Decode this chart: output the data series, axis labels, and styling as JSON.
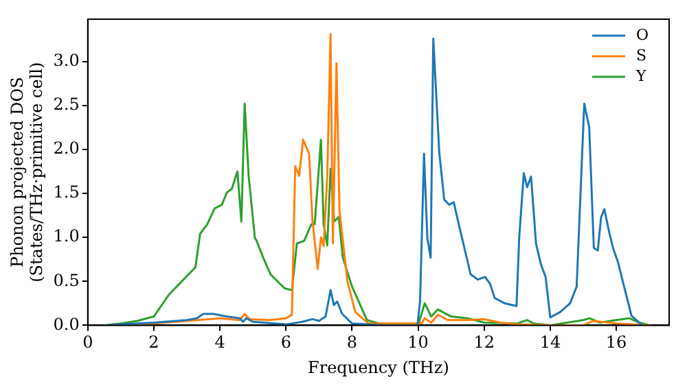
{
  "chart_data": {
    "type": "line",
    "xlabel": "Frequency (THz)",
    "ylabel": "Phonon projected DOS\n(States/THz·primitive cell)",
    "xlim": [
      0,
      17.6
    ],
    "ylim": [
      0,
      3.48
    ],
    "xticks": [
      0,
      2,
      4,
      6,
      8,
      10,
      12,
      14,
      16
    ],
    "yticks": [
      {
        "value": 0,
        "label": "0.0"
      },
      {
        "value": 0.5,
        "label": "0.5"
      },
      {
        "value": 1,
        "label": "1.0"
      },
      {
        "value": 1.5,
        "label": "1.5"
      },
      {
        "value": 2,
        "label": "2.0"
      },
      {
        "value": 2.5,
        "label": "2.5"
      },
      {
        "value": 3,
        "label": "3.0"
      }
    ],
    "grid": false,
    "legend": "top right",
    "marker": "none",
    "line_style": "solid",
    "series": [
      {
        "name": "O",
        "color": "#1f77b4",
        "x": [
          0.5,
          1,
          2,
          3,
          3.3,
          3.5,
          3.8,
          4.2,
          4.6,
          4.7,
          4.8,
          5,
          6,
          6.5,
          6.8,
          7,
          7.2,
          7.35,
          7.45,
          7.55,
          7.7,
          8,
          9,
          9.98,
          10.06,
          10.18,
          10.28,
          10.38,
          10.46,
          10.64,
          10.79,
          10.94,
          11.08,
          11.23,
          11.37,
          11.59,
          11.81,
          12.03,
          12.18,
          12.32,
          12.62,
          12.98,
          13.06,
          13.2,
          13.3,
          13.42,
          13.57,
          13.72,
          13.86,
          14.0,
          14.3,
          14.6,
          14.8,
          15.03,
          15.18,
          15.32,
          15.44,
          15.54,
          15.64,
          15.76,
          15.9,
          16.05,
          16.27,
          16.46,
          16.78
        ],
        "values": [
          0,
          0.01,
          0.03,
          0.06,
          0.08,
          0.13,
          0.13,
          0.1,
          0.08,
          0.04,
          0.08,
          0.04,
          0.01,
          0.04,
          0.07,
          0.05,
          0.1,
          0.4,
          0.23,
          0.27,
          0.13,
          0.02,
          0,
          0,
          0.28,
          1.95,
          0.99,
          0.77,
          3.26,
          1.97,
          1.43,
          1.37,
          1.4,
          1.15,
          0.93,
          0.58,
          0.52,
          0.55,
          0.47,
          0.31,
          0.25,
          0.22,
          0.99,
          1.73,
          1.57,
          1.69,
          0.93,
          0.69,
          0.55,
          0.09,
          0.15,
          0.25,
          0.44,
          2.52,
          2.25,
          0.88,
          0.85,
          1.23,
          1.32,
          1.1,
          0.88,
          0.72,
          0.39,
          0.11,
          0
        ]
      },
      {
        "name": "S",
        "color": "#ff7f0e",
        "x": [
          0.5,
          2,
          3,
          4,
          4.6,
          4.75,
          4.9,
          5.5,
          6,
          6.18,
          6.28,
          6.4,
          6.52,
          6.7,
          6.8,
          6.96,
          7.06,
          7.14,
          7.25,
          7.35,
          7.42,
          7.53,
          7.62,
          7.86,
          8.1,
          8.5,
          10,
          10.1,
          10.2,
          10.4,
          10.6,
          10.9,
          11.5,
          12,
          12.5,
          13,
          14,
          15,
          15.3,
          16,
          17
        ],
        "values": [
          0,
          0.02,
          0.05,
          0.08,
          0.06,
          0.13,
          0.07,
          0.06,
          0.08,
          0.12,
          1.81,
          1.7,
          2.11,
          1.95,
          1.2,
          0.64,
          1.0,
          0.9,
          1.7,
          3.31,
          0.93,
          2.98,
          1.3,
          0.5,
          0.15,
          0.02,
          0.02,
          0.02,
          0.08,
          0.03,
          0.12,
          0.06,
          0.06,
          0.07,
          0.03,
          0.01,
          0,
          0,
          0.05,
          0.02,
          0
        ]
      },
      {
        "name": "Y",
        "color": "#2ca02c",
        "x": [
          0.5,
          1,
          1.5,
          2,
          2.46,
          3.26,
          3.4,
          3.62,
          3.84,
          4.06,
          4.21,
          4.36,
          4.53,
          4.65,
          4.75,
          4.87,
          5.06,
          5.1,
          5.31,
          5.53,
          5.96,
          6.18,
          6.33,
          6.55,
          6.77,
          6.87,
          7.06,
          7.14,
          7.25,
          7.35,
          7.46,
          7.6,
          7.72,
          8.0,
          8.45,
          9,
          10,
          10.2,
          10.4,
          10.6,
          11,
          11.5,
          12,
          13,
          13.3,
          13.5,
          14,
          15,
          15.2,
          15.5,
          16,
          16.4,
          16.7,
          17
        ],
        "values": [
          0,
          0.02,
          0.05,
          0.1,
          0.35,
          0.66,
          1.04,
          1.15,
          1.33,
          1.37,
          1.51,
          1.55,
          1.75,
          1.18,
          2.52,
          1.7,
          0.99,
          0.97,
          0.77,
          0.58,
          0.42,
          0.4,
          0.93,
          0.96,
          1.15,
          1.15,
          2.11,
          1.15,
          0.91,
          1.78,
          1.18,
          1.23,
          0.77,
          0.44,
          0.06,
          0,
          0,
          0.25,
          0.1,
          0.18,
          0.1,
          0.08,
          0.03,
          0.02,
          0.06,
          0.02,
          0,
          0.06,
          0.08,
          0.03,
          0.06,
          0.08,
          0.03,
          0
        ]
      }
    ]
  }
}
